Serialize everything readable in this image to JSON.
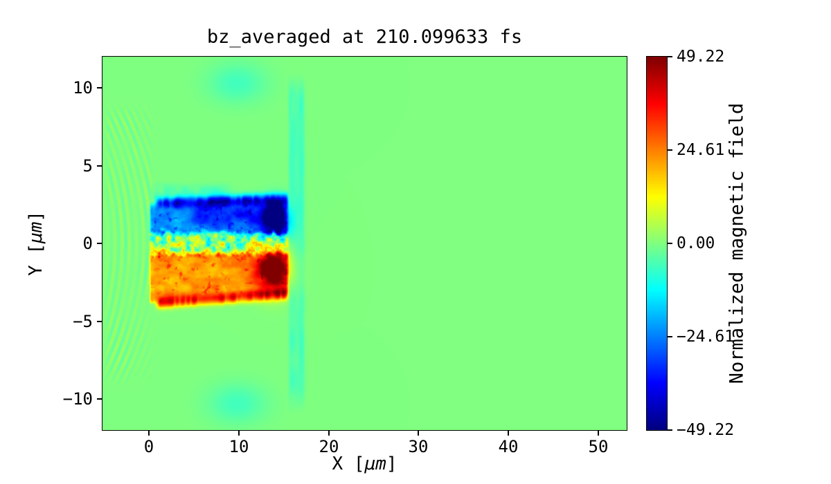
{
  "chart_data": {
    "type": "heatmap",
    "title": "bz_averaged at 210.099633 fs",
    "xlabel": "X [μm]",
    "ylabel": "Y [μm]",
    "xlabel_parts": {
      "pre": "X [",
      "unit": "μm",
      "post": "]"
    },
    "ylabel_parts": {
      "pre": "Y [",
      "unit": "μm",
      "post": "]"
    },
    "xlim": [
      -5.2,
      53.2
    ],
    "ylim": [
      -12,
      12
    ],
    "xticks": {
      "values": [
        0,
        10,
        20,
        30,
        40,
        50
      ],
      "labels": [
        "0",
        "10",
        "20",
        "30",
        "40",
        "50"
      ]
    },
    "yticks": {
      "values": [
        10,
        5,
        0,
        -5,
        -10
      ],
      "labels": [
        "10",
        "5",
        "0",
        "−5",
        "−10"
      ]
    },
    "colormap": "jet",
    "vmin": -49.22,
    "vmax": 49.22,
    "background_value": 0,
    "colorbar": {
      "label": "Normalized magnetic field",
      "ticks": {
        "values": [
          49.22,
          24.61,
          0,
          -24.61,
          -49.22
        ],
        "labels": [
          "49.22",
          "24.61",
          "0.00",
          "−24.61",
          "−49.22"
        ]
      }
    },
    "description": "2D map of averaged Bz from a laser-plasma simulation: a turbulent bipolar field channel spans x = 0 to 15.5 μm, |y| < 4 μm, with negative (blue) filaments above the axis and positive (red/orange) filaments below, strongest near the channel front at x = 13-15 μm; weak concentric laser ripples occupy x < 0 and a faint negative vertical band sits at x = 15.5-17 μm; elsewhere the field is 0 (green).",
    "field_model": {
      "seed": 7,
      "channel": {
        "x0": 0.0,
        "x1": 15.5,
        "y_top": 2.6,
        "y_top_slope": 0.02,
        "y_bot": -3.9,
        "y_bot_slope": 0.04,
        "band_inner": 0.45,
        "edge_amp": 40,
        "edge_sigma": 0.22,
        "band_amp_base": 15,
        "band_amp_noise": 14,
        "patch_amp": 26,
        "axis_amp": 27,
        "axis_halfwidth": 0.85,
        "axis_warm_bias": 12
      },
      "halo_top": {
        "x0": 0.5,
        "x1": 9.0,
        "y0": 2.6,
        "y1": 3.7,
        "amp": -7
      },
      "mid_streak": {
        "y": 1.9,
        "sigma": 0.6,
        "amp": -16,
        "x0": 4.0,
        "x1": 15.2
      },
      "front_blobs": [
        {
          "x": 14.1,
          "y": 1.5,
          "sx": 1.0,
          "sy": 0.8,
          "amp": -34
        },
        {
          "x": 13.8,
          "y": -1.6,
          "sx": 1.3,
          "sy": 1.0,
          "amp": 38
        }
      ],
      "outer_blobs": [
        {
          "x": 9.8,
          "y": 10.3,
          "sx": 2.3,
          "sy": 0.9,
          "amp": -6
        },
        {
          "x": 9.8,
          "y": -10.3,
          "sx": 2.3,
          "sy": 0.9,
          "amp": -6
        }
      ],
      "front_band": {
        "x0": 15.5,
        "x1": 17.3,
        "y_max": 10.3,
        "amp": -7
      },
      "ripples": {
        "x0": -5.2,
        "x1": 0.15,
        "y_max": 9.0,
        "wavelength": 0.8,
        "amp": 3.6,
        "curvature": 0.05
      }
    }
  }
}
